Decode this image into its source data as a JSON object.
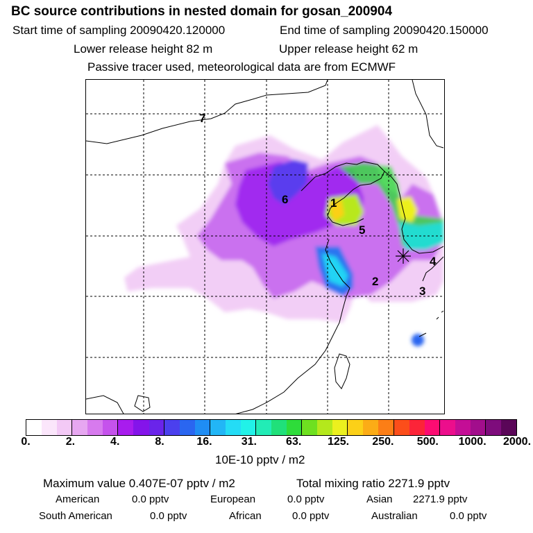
{
  "header": {
    "title": "BC  source contributions in nested domain for gosan_200904",
    "start_label": "Start time of sampling 20090420.120000",
    "end_label": "End time of sampling 20090420.150000",
    "lower_label": "Lower release height   82 m",
    "upper_label": "Upper release height   62 m",
    "tracer_label": "Passive tracer used, meteorological data are from ECMWF"
  },
  "map": {
    "region_labels": [
      "1",
      "2",
      "3",
      "4",
      "5",
      "6",
      "7"
    ],
    "receptor_marker": "asterisk-icon"
  },
  "colorbar": {
    "colors": [
      "#ffffff",
      "#fbe6fb",
      "#f3c9f6",
      "#e7a7f1",
      "#d77aee",
      "#c552ec",
      "#a81cee",
      "#8414ea",
      "#6a24ea",
      "#4b40ee",
      "#2a66f0",
      "#1f8df4",
      "#22b6f6",
      "#24dcf6",
      "#21f2e8",
      "#22ecb6",
      "#20e07a",
      "#2edc3a",
      "#6ee020",
      "#b4e81c",
      "#ecf01e",
      "#fcd018",
      "#fcac16",
      "#fc7e16",
      "#fc4e1a",
      "#fc2438",
      "#fc0c72",
      "#ec0e8c",
      "#c40e96",
      "#a20e8c",
      "#7e0c7c",
      "#5a0658"
    ],
    "labels": [
      "0.",
      "2.",
      "4.",
      "8.",
      "16.",
      "31.",
      "63.",
      "125.",
      "250.",
      "500.",
      "1000.",
      "2000."
    ],
    "units": "10E-10 pptv / m2"
  },
  "stats": {
    "max_value": "Maximum value  0.407E-07 pptv / m2",
    "total_mixing": "Total mixing ratio     2271.9 pptv",
    "american_label": "American",
    "american_value": "0.0 pptv",
    "european_label": "European",
    "european_value": "0.0 pptv",
    "asian_label": "Asian",
    "asian_value": "2271.9 pptv",
    "south_american_label": "South American",
    "south_american_value": "0.0 pptv",
    "african_label": "African",
    "african_value": "0.0 pptv",
    "australian_label": "Australian",
    "australian_value": "0.0 pptv"
  }
}
